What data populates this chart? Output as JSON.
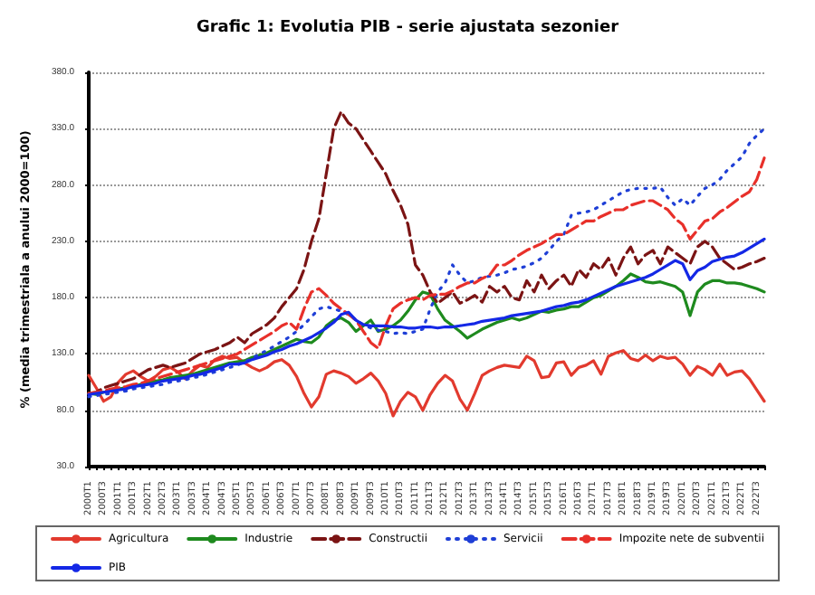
{
  "chart_data": {
    "type": "line",
    "title": "Grafic 1: Evolutia PIB - serie ajustata sezonier",
    "ylabel": "% (media trimestriala a anului 2000=100)",
    "categories": [
      "2000T1",
      null,
      "2000T3",
      null,
      "2001T1",
      null,
      "2001T3",
      null,
      "2002T1",
      null,
      "2002T3",
      null,
      "2003T1",
      null,
      "2003T3",
      null,
      "2004T1",
      null,
      "2004T3",
      null,
      "2005T1",
      null,
      "2005T3",
      null,
      "2006T1",
      null,
      "2006T3",
      null,
      "2007T1",
      null,
      "2007T3",
      null,
      "2008T1",
      null,
      "2008T3",
      null,
      "2009T1",
      null,
      "2009T3",
      null,
      "2010T1",
      null,
      "2010T3",
      null,
      "2011T1",
      null,
      "2011T3",
      null,
      "2012T1",
      null,
      "2012T3",
      null,
      "2013T1",
      null,
      "2013T3",
      null,
      "2014T1",
      null,
      "2014T3",
      null,
      "2015T1",
      null,
      "2015T3",
      null,
      "2016T1",
      null,
      "2016T3",
      null,
      "2017T1",
      null,
      "2017T3",
      null,
      "2018T1",
      null,
      "2018T3",
      null,
      "2019T1",
      null,
      "2019T3",
      null,
      "2020T1",
      null,
      "2020T3",
      null,
      "2021T1",
      null,
      "2021T3",
      null,
      "2022T1",
      null,
      "2022T3",
      null
    ],
    "series": [
      {
        "name": "Agricultura",
        "color": "#e23a2e",
        "line_style": "solid",
        "values": [
          111,
          100,
          88,
          92,
          105,
          112,
          115,
          110,
          106,
          110,
          116,
          118,
          114,
          108,
          115,
          120,
          118,
          125,
          128,
          126,
          127,
          122,
          118,
          115,
          118,
          123,
          125,
          120,
          110,
          95,
          83,
          92,
          112,
          115,
          113,
          110,
          104,
          108,
          113,
          106,
          95,
          75,
          88,
          96,
          92,
          80,
          94,
          104,
          111,
          106,
          90,
          80,
          95,
          111,
          115,
          118,
          120,
          119,
          118,
          128,
          124,
          109,
          110,
          122,
          123,
          111,
          118,
          120,
          124,
          112,
          128,
          131,
          133,
          126,
          124,
          129,
          124,
          128,
          126,
          127,
          121,
          111,
          119,
          116,
          111,
          121,
          111,
          114,
          115,
          108,
          98,
          88
        ]
      },
      {
        "name": "Industrie",
        "color": "#1e8a1e",
        "line_style": "solid",
        "values": [
          95,
          94,
          96,
          97,
          99,
          100,
          101,
          103,
          104,
          106,
          107,
          109,
          110,
          111,
          112,
          114,
          116,
          118,
          120,
          122,
          123,
          124,
          127,
          129,
          131,
          134,
          137,
          140,
          143,
          141,
          140,
          145,
          155,
          160,
          162,
          158,
          150,
          155,
          160,
          150,
          152,
          155,
          160,
          168,
          178,
          185,
          183,
          170,
          160,
          155,
          150,
          144,
          148,
          152,
          155,
          158,
          160,
          162,
          160,
          162,
          165,
          168,
          167,
          169,
          170,
          172,
          172,
          176,
          180,
          182,
          186,
          190,
          195,
          201,
          198,
          194,
          193,
          194,
          192,
          190,
          185,
          164,
          185,
          192,
          195,
          195,
          193,
          193,
          192,
          190,
          188,
          185
        ]
      },
      {
        "name": "Constructii",
        "color": "#7b1414",
        "line_style": "dashed",
        "values": [
          95,
          96,
          100,
          102,
          104,
          106,
          108,
          112,
          116,
          118,
          120,
          118,
          120,
          122,
          126,
          130,
          132,
          134,
          137,
          140,
          145,
          140,
          148,
          152,
          156,
          162,
          172,
          180,
          188,
          205,
          230,
          250,
          290,
          330,
          345,
          335,
          330,
          320,
          310,
          300,
          290,
          275,
          262,
          245,
          209,
          200,
          185,
          175,
          180,
          185,
          175,
          178,
          182,
          176,
          190,
          185,
          190,
          180,
          178,
          195,
          185,
          200,
          188,
          195,
          200,
          190,
          205,
          198,
          210,
          205,
          215,
          200,
          215,
          225,
          210,
          218,
          222,
          210,
          225,
          220,
          215,
          210,
          225,
          230,
          225,
          215,
          210,
          205,
          207,
          210,
          212,
          215
        ]
      },
      {
        "name": "Servicii",
        "color": "#1f3fd6",
        "line_style": "dotted",
        "values": [
          92,
          93,
          94,
          95,
          96,
          97,
          99,
          100,
          101,
          102,
          103,
          105,
          106,
          107,
          109,
          110,
          112,
          114,
          116,
          118,
          120,
          123,
          126,
          130,
          133,
          137,
          141,
          145,
          150,
          156,
          163,
          170,
          172,
          170,
          168,
          165,
          160,
          156,
          153,
          151,
          150,
          148,
          149,
          148,
          150,
          152,
          170,
          185,
          193,
          209,
          200,
          193,
          195,
          198,
          199,
          200,
          202,
          205,
          206,
          208,
          211,
          215,
          222,
          230,
          236,
          253,
          255,
          256,
          258,
          262,
          266,
          270,
          274,
          276,
          277,
          277,
          277,
          278,
          269,
          262,
          268,
          262,
          270,
          277,
          280,
          285,
          293,
          299,
          305,
          317,
          324,
          330
        ]
      },
      {
        "name": "Impozite nete de subventii",
        "color": "#e8302a",
        "line_style": "dashed",
        "values": [
          95,
          96,
          97,
          99,
          100,
          101,
          103,
          104,
          106,
          108,
          110,
          112,
          114,
          116,
          118,
          120,
          122,
          124,
          126,
          128,
          130,
          134,
          138,
          142,
          146,
          150,
          155,
          158,
          152,
          170,
          185,
          188,
          182,
          175,
          170,
          165,
          160,
          150,
          140,
          135,
          155,
          170,
          175,
          178,
          180,
          178,
          182,
          183,
          183,
          186,
          190,
          193,
          193,
          197,
          200,
          209,
          209,
          213,
          218,
          222,
          225,
          228,
          232,
          236,
          236,
          240,
          244,
          248,
          248,
          252,
          255,
          258,
          258,
          262,
          264,
          266,
          266,
          262,
          258,
          250,
          245,
          232,
          240,
          248,
          250,
          256,
          260,
          265,
          270,
          274,
          285,
          304
        ]
      },
      {
        "name": "PIB",
        "color": "#1428e6",
        "line_style": "solid",
        "values": [
          94,
          95,
          96,
          97,
          98,
          99,
          101,
          102,
          103,
          104,
          106,
          107,
          108,
          109,
          111,
          112,
          114,
          116,
          118,
          121,
          121,
          122,
          125,
          127,
          129,
          132,
          134,
          137,
          139,
          142,
          145,
          149,
          153,
          158,
          165,
          167,
          160,
          156,
          155,
          155,
          155,
          154,
          154,
          153,
          153,
          154,
          154,
          153,
          154,
          154,
          155,
          156,
          157,
          159,
          160,
          161,
          162,
          164,
          165,
          166,
          167,
          168,
          170,
          172,
          173,
          175,
          176,
          178,
          181,
          184,
          187,
          190,
          192,
          194,
          196,
          198,
          201,
          205,
          209,
          213,
          210,
          196,
          204,
          207,
          212,
          214,
          216,
          217,
          220,
          224,
          228,
          232
        ]
      }
    ],
    "ylim": [
      30,
      380
    ],
    "yticks": [
      {
        "value": 30,
        "label": "30.0"
      },
      {
        "value": 80,
        "label": "80.0"
      },
      {
        "value": 130,
        "label": "130.0"
      },
      {
        "value": 180,
        "label": "180.0"
      },
      {
        "value": 230,
        "label": "230.0"
      },
      {
        "value": 280,
        "label": "280.0"
      },
      {
        "value": 330,
        "label": "330.0"
      },
      {
        "value": 380,
        "label": "380.0"
      }
    ],
    "grid": "y",
    "legend": "bottom",
    "marker": "none"
  }
}
